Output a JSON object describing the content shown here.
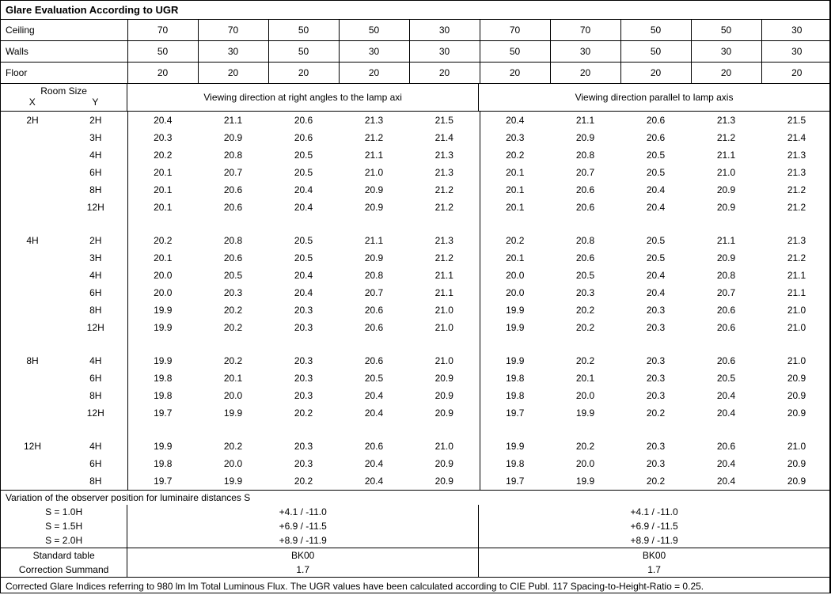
{
  "title": "Glare Evaluation According to UGR",
  "header_rows": [
    {
      "label": "Ceiling",
      "left": [
        "70",
        "70",
        "50",
        "50",
        "30"
      ],
      "right": [
        "70",
        "70",
        "50",
        "50",
        "30"
      ]
    },
    {
      "label": "Walls",
      "left": [
        "50",
        "30",
        "50",
        "30",
        "30"
      ],
      "right": [
        "50",
        "30",
        "50",
        "30",
        "30"
      ]
    },
    {
      "label": "Floor",
      "left": [
        "20",
        "20",
        "20",
        "20",
        "20"
      ],
      "right": [
        "20",
        "20",
        "20",
        "20",
        "20"
      ]
    }
  ],
  "room_size_label": "Room Size",
  "x_label": "X",
  "y_label": "Y",
  "grp_left": "Viewing direction at right angles to the lamp axi",
  "grp_right": "Viewing direction parallel to lamp axis",
  "blocks": [
    {
      "x": "2H",
      "rows": [
        {
          "y": "2H",
          "l": [
            "20.4",
            "21.1",
            "20.6",
            "21.3",
            "21.5"
          ],
          "r": [
            "20.4",
            "21.1",
            "20.6",
            "21.3",
            "21.5"
          ]
        },
        {
          "y": "3H",
          "l": [
            "20.3",
            "20.9",
            "20.6",
            "21.2",
            "21.4"
          ],
          "r": [
            "20.3",
            "20.9",
            "20.6",
            "21.2",
            "21.4"
          ]
        },
        {
          "y": "4H",
          "l": [
            "20.2",
            "20.8",
            "20.5",
            "21.1",
            "21.3"
          ],
          "r": [
            "20.2",
            "20.8",
            "20.5",
            "21.1",
            "21.3"
          ]
        },
        {
          "y": "6H",
          "l": [
            "20.1",
            "20.7",
            "20.5",
            "21.0",
            "21.3"
          ],
          "r": [
            "20.1",
            "20.7",
            "20.5",
            "21.0",
            "21.3"
          ]
        },
        {
          "y": "8H",
          "l": [
            "20.1",
            "20.6",
            "20.4",
            "20.9",
            "21.2"
          ],
          "r": [
            "20.1",
            "20.6",
            "20.4",
            "20.9",
            "21.2"
          ]
        },
        {
          "y": "12H",
          "l": [
            "20.1",
            "20.6",
            "20.4",
            "20.9",
            "21.2"
          ],
          "r": [
            "20.1",
            "20.6",
            "20.4",
            "20.9",
            "21.2"
          ]
        }
      ],
      "gap": true
    },
    {
      "x": "4H",
      "rows": [
        {
          "y": "2H",
          "l": [
            "20.2",
            "20.8",
            "20.5",
            "21.1",
            "21.3"
          ],
          "r": [
            "20.2",
            "20.8",
            "20.5",
            "21.1",
            "21.3"
          ]
        },
        {
          "y": "3H",
          "l": [
            "20.1",
            "20.6",
            "20.5",
            "20.9",
            "21.2"
          ],
          "r": [
            "20.1",
            "20.6",
            "20.5",
            "20.9",
            "21.2"
          ]
        },
        {
          "y": "4H",
          "l": [
            "20.0",
            "20.5",
            "20.4",
            "20.8",
            "21.1"
          ],
          "r": [
            "20.0",
            "20.5",
            "20.4",
            "20.8",
            "21.1"
          ]
        },
        {
          "y": "6H",
          "l": [
            "20.0",
            "20.3",
            "20.4",
            "20.7",
            "21.1"
          ],
          "r": [
            "20.0",
            "20.3",
            "20.4",
            "20.7",
            "21.1"
          ]
        },
        {
          "y": "8H",
          "l": [
            "19.9",
            "20.2",
            "20.3",
            "20.6",
            "21.0"
          ],
          "r": [
            "19.9",
            "20.2",
            "20.3",
            "20.6",
            "21.0"
          ]
        },
        {
          "y": "12H",
          "l": [
            "19.9",
            "20.2",
            "20.3",
            "20.6",
            "21.0"
          ],
          "r": [
            "19.9",
            "20.2",
            "20.3",
            "20.6",
            "21.0"
          ]
        }
      ],
      "gap": true
    },
    {
      "x": "8H",
      "rows": [
        {
          "y": "4H",
          "l": [
            "19.9",
            "20.2",
            "20.3",
            "20.6",
            "21.0"
          ],
          "r": [
            "19.9",
            "20.2",
            "20.3",
            "20.6",
            "21.0"
          ]
        },
        {
          "y": "6H",
          "l": [
            "19.8",
            "20.1",
            "20.3",
            "20.5",
            "20.9"
          ],
          "r": [
            "19.8",
            "20.1",
            "20.3",
            "20.5",
            "20.9"
          ]
        },
        {
          "y": "8H",
          "l": [
            "19.8",
            "20.0",
            "20.3",
            "20.4",
            "20.9"
          ],
          "r": [
            "19.8",
            "20.0",
            "20.3",
            "20.4",
            "20.9"
          ]
        },
        {
          "y": "12H",
          "l": [
            "19.7",
            "19.9",
            "20.2",
            "20.4",
            "20.9"
          ],
          "r": [
            "19.7",
            "19.9",
            "20.2",
            "20.4",
            "20.9"
          ]
        }
      ],
      "gap": true
    },
    {
      "x": "12H",
      "rows": [
        {
          "y": "4H",
          "l": [
            "19.9",
            "20.2",
            "20.3",
            "20.6",
            "21.0"
          ],
          "r": [
            "19.9",
            "20.2",
            "20.3",
            "20.6",
            "21.0"
          ]
        },
        {
          "y": "6H",
          "l": [
            "19.8",
            "20.0",
            "20.3",
            "20.4",
            "20.9"
          ],
          "r": [
            "19.8",
            "20.0",
            "20.3",
            "20.4",
            "20.9"
          ]
        },
        {
          "y": "8H",
          "l": [
            "19.7",
            "19.9",
            "20.2",
            "20.4",
            "20.9"
          ],
          "r": [
            "19.7",
            "19.9",
            "20.2",
            "20.4",
            "20.9"
          ]
        }
      ],
      "gap": false
    }
  ],
  "variation_title": "Variation of the observer position for luminaire distances S",
  "variation_rows": [
    {
      "s": "S = 1.0H",
      "l": "+4.1 / -11.0",
      "r": "+4.1 / -11.0"
    },
    {
      "s": "S = 1.5H",
      "l": "+6.9 / -11.5",
      "r": "+6.9 / -11.5"
    },
    {
      "s": "S = 2.0H",
      "l": "+8.9 / -11.9",
      "r": "+8.9 / -11.9"
    }
  ],
  "std_table_label": "Standard table",
  "std_table_l": "BK00",
  "std_table_r": "BK00",
  "corr_label": "Correction Summand",
  "corr_l": "1.7",
  "corr_r": "1.7",
  "footnote": "Corrected Glare Indices referring to 980 lm lm Total Luminous Flux. The UGR values have been calculated according to CIE Publ. 117    Spacing-to-Height-Ratio = 0.25."
}
